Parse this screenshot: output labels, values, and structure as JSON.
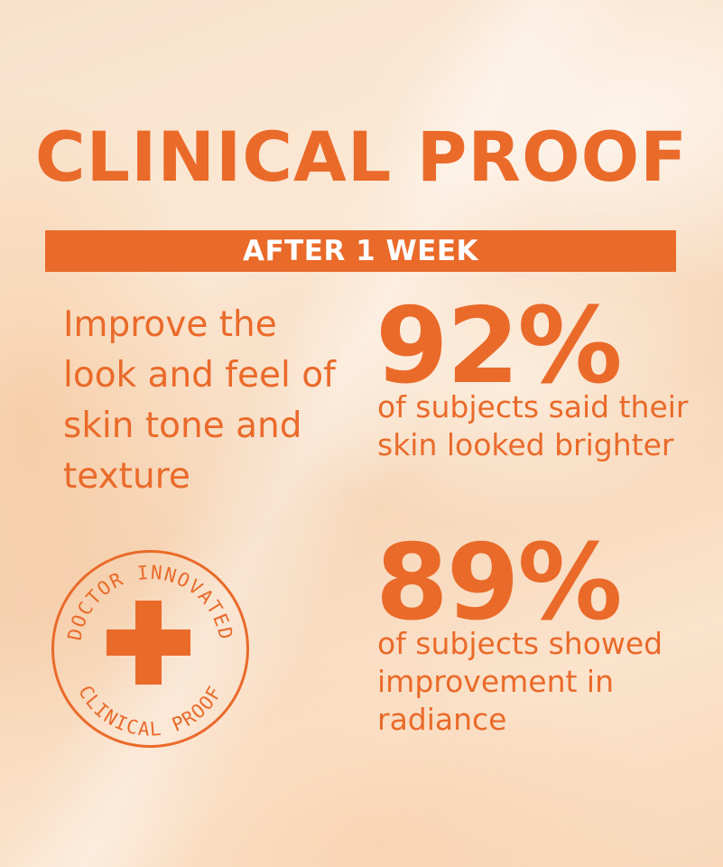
{
  "title": "CLINICAL PROOF",
  "banner": "AFTER 1 WEEK",
  "claim": "Improve the look and feel of skin tone and texture",
  "stats": [
    {
      "value": "92%",
      "description": "of subjects said their skin looked brighter"
    },
    {
      "value": "89%",
      "description": "of subjects showed improvement in radiance"
    }
  ],
  "badge": {
    "top_text": "DOCTOR INNOVATED",
    "bottom_text": "CLINICAL PROOF",
    "icon": "plus-cross-icon"
  },
  "colors": {
    "accent": "#ea6a2a",
    "banner_text": "#ffffff",
    "background": "#f8e2cc"
  }
}
